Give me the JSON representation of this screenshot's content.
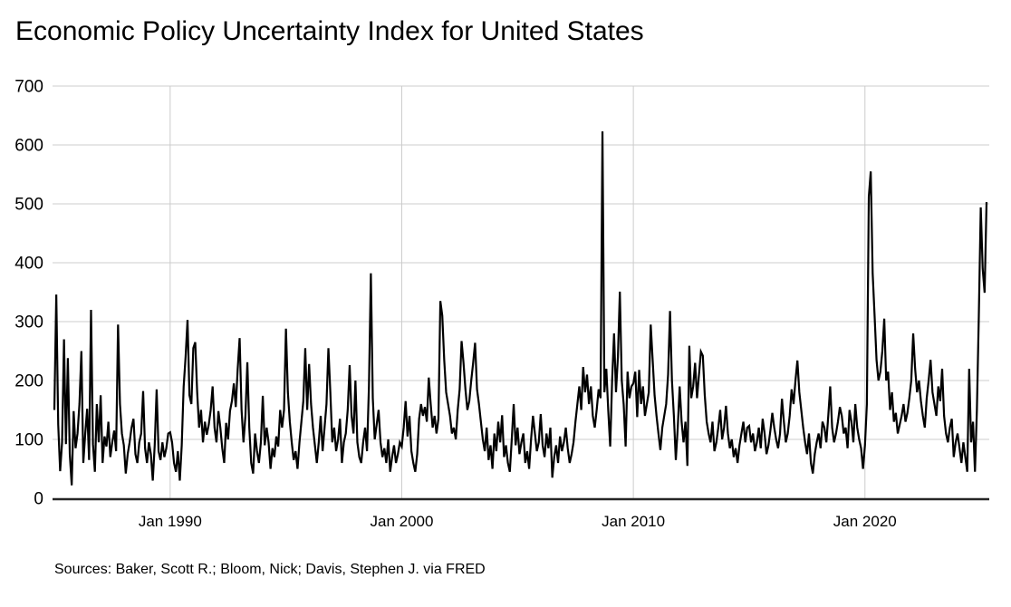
{
  "page": {
    "title": "Economic Policy Uncertainty Index for United States",
    "source_note": "Sources: Baker, Scott R.; Bloom, Nick; Davis, Stephen J. via FRED"
  },
  "colors": {
    "background": "#ffffff",
    "line": "#000000",
    "grid": "#cccccc",
    "axis": "#262626",
    "text": "#000000"
  },
  "chart_data": {
    "type": "line",
    "title": "Economic Policy Uncertainty Index for United States",
    "xlabel": "",
    "ylabel": "",
    "ylim": [
      0,
      700
    ],
    "grid": true,
    "legend_position": "none",
    "frequency": "monthly",
    "start": "1985-01",
    "end": "2025-04",
    "y_ticks": [
      0,
      100,
      200,
      300,
      400,
      500,
      600,
      700
    ],
    "x_ticks": [
      {
        "label": "Jan 1990",
        "month_index": 60
      },
      {
        "label": "Jan 2000",
        "month_index": 180
      },
      {
        "label": "Jan 2010",
        "month_index": 300
      },
      {
        "label": "Jan 2020",
        "month_index": 420
      }
    ],
    "series": [
      {
        "name": "Economic Policy Uncertainty Index for United States",
        "color": "#000000",
        "values": [
          150,
          346,
          125,
          46,
          95,
          270,
          92,
          238,
          75,
          22,
          148,
          85,
          110,
          160,
          250,
          60,
          110,
          152,
          65,
          320,
          92,
          45,
          160,
          95,
          175,
          60,
          105,
          88,
          130,
          70,
          95,
          115,
          80,
          295,
          160,
          110,
          90,
          42,
          75,
          95,
          120,
          135,
          75,
          60,
          95,
          110,
          182,
          85,
          60,
          95,
          75,
          30,
          90,
          185,
          80,
          65,
          95,
          70,
          85,
          110,
          112,
          95,
          60,
          45,
          80,
          30,
          90,
          190,
          240,
          303,
          175,
          160,
          255,
          265,
          180,
          120,
          150,
          95,
          130,
          108,
          125,
          150,
          190,
          120,
          95,
          148,
          120,
          85,
          60,
          128,
          100,
          148,
          165,
          195,
          155,
          220,
          272,
          150,
          95,
          140,
          231,
          120,
          60,
          42,
          110,
          80,
          60,
          95,
          174,
          90,
          120,
          95,
          50,
          85,
          70,
          105,
          88,
          150,
          120,
          150,
          288,
          180,
          130,
          95,
          65,
          80,
          50,
          95,
          130,
          165,
          255,
          150,
          228,
          160,
          120,
          90,
          60,
          95,
          140,
          80,
          120,
          160,
          255,
          180,
          95,
          120,
          80,
          100,
          135,
          60,
          95,
          110,
          150,
          226,
          140,
          110,
          200,
          95,
          70,
          60,
          95,
          120,
          80,
          190,
          382,
          170,
          100,
          125,
          150,
          95,
          70,
          85,
          60,
          100,
          45,
          70,
          90,
          60,
          75,
          95,
          88,
          120,
          165,
          105,
          140,
          80,
          60,
          45,
          75,
          135,
          160,
          140,
          155,
          130,
          205,
          160,
          120,
          140,
          110,
          135,
          335,
          310,
          235,
          180,
          160,
          140,
          110,
          120,
          100,
          150,
          185,
          267,
          230,
          185,
          150,
          165,
          200,
          230,
          264,
          185,
          160,
          130,
          100,
          80,
          120,
          65,
          90,
          50,
          110,
          80,
          130,
          95,
          141,
          70,
          90,
          60,
          45,
          100,
          160,
          90,
          120,
          75,
          95,
          110,
          60,
          80,
          50,
          100,
          140,
          110,
          80,
          95,
          143,
          90,
          70,
          110,
          85,
          120,
          35,
          70,
          90,
          60,
          105,
          80,
          95,
          120,
          85,
          60,
          75,
          95,
          130,
          160,
          190,
          150,
          223,
          180,
          210,
          160,
          190,
          140,
          120,
          150,
          185,
          170,
          623,
          180,
          220,
          149,
          88,
          200,
          280,
          180,
          240,
          351,
          200,
          159,
          88,
          215,
          170,
          190,
          195,
          215,
          138,
          218,
          160,
          190,
          140,
          160,
          180,
          295,
          235,
          175,
          140,
          110,
          82,
          120,
          140,
          160,
          210,
          318,
          200,
          140,
          65,
          120,
          190,
          130,
          95,
          130,
          55,
          259,
          170,
          190,
          230,
          170,
          210,
          249,
          242,
          175,
          130,
          110,
          95,
          130,
          80,
          95,
          120,
          150,
          100,
          120,
          157,
          110,
          85,
          100,
          70,
          85,
          60,
          90,
          110,
          130,
          95,
          120,
          123,
          95,
          110,
          80,
          95,
          120,
          85,
          135,
          110,
          75,
          90,
          115,
          145,
          120,
          100,
          85,
          110,
          169,
          130,
          95,
          110,
          140,
          185,
          160,
          200,
          234,
          180,
          150,
          120,
          95,
          75,
          110,
          60,
          42,
          75,
          95,
          110,
          85,
          130,
          120,
          95,
          140,
          190,
          120,
          95,
          110,
          130,
          155,
          140,
          110,
          120,
          85,
          150,
          130,
          95,
          160,
          120,
          100,
          85,
          50,
          90,
          160,
          512,
          555,
          382,
          310,
          235,
          200,
          215,
          250,
          305,
          200,
          215,
          150,
          180,
          130,
          145,
          110,
          125,
          140,
          160,
          130,
          145,
          170,
          200,
          280,
          220,
          180,
          200,
          165,
          140,
          120,
          170,
          200,
          235,
          180,
          160,
          140,
          190,
          165,
          220,
          140,
          110,
          95,
          120,
          135,
          70,
          95,
          110,
          85,
          60,
          95,
          70,
          45,
          220,
          95,
          130,
          45,
          150,
          310,
          494,
          390,
          349,
          503
        ]
      }
    ]
  }
}
